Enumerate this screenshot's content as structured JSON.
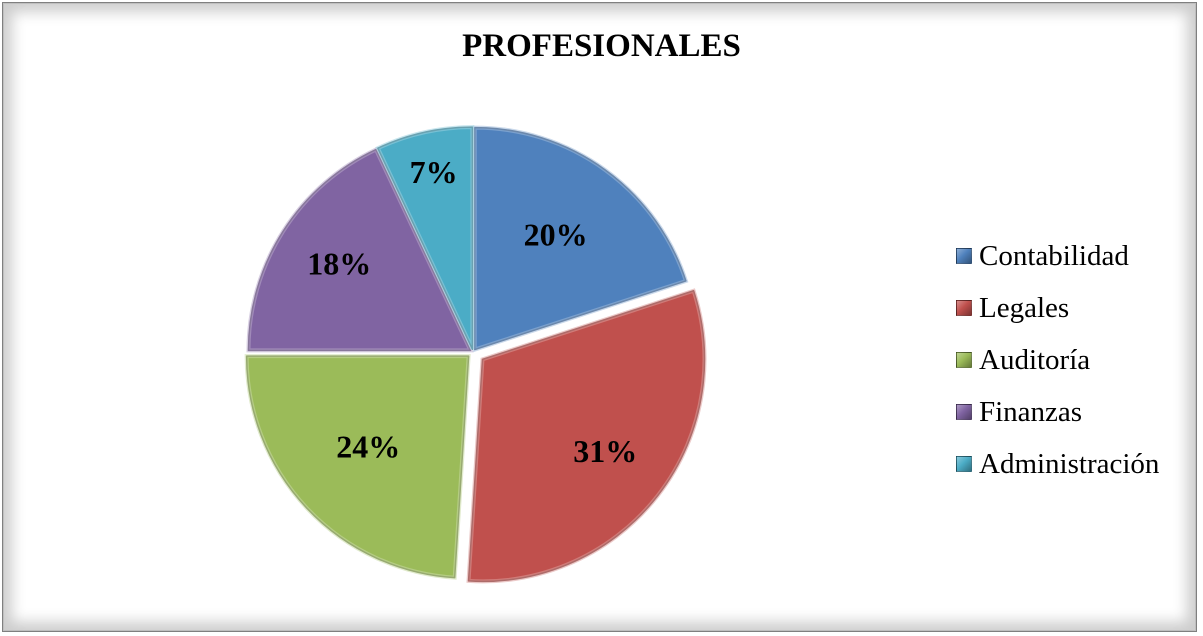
{
  "chart_data": {
    "type": "pie",
    "title": "PROFESIONALES",
    "categories": [
      "Contabilidad",
      "Legales",
      "Auditoría",
      "Finanzas",
      "Administración"
    ],
    "values": [
      20,
      31,
      24,
      18,
      7
    ],
    "labels": [
      "20%",
      "31%",
      "24%",
      "18%",
      "7%"
    ],
    "colors": [
      "#4f81bd",
      "#c0504d",
      "#9bbb59",
      "#8064a2",
      "#4bacc6"
    ],
    "legend_position": "right"
  }
}
